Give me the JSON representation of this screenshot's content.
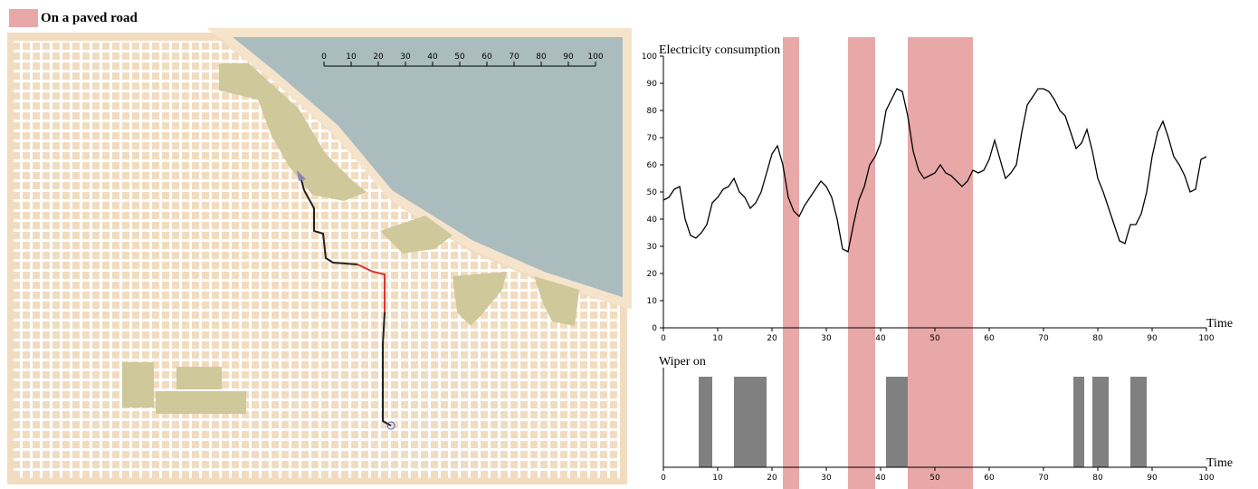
{
  "legend": {
    "label": "On a paved road",
    "color": "#e8a8a8",
    "intervals": [
      [
        22,
        25
      ],
      [
        34,
        39
      ],
      [
        45,
        57
      ]
    ]
  },
  "map": {
    "scale_ticks": [
      0,
      10,
      20,
      30,
      40,
      50,
      60,
      70,
      80,
      90,
      100
    ]
  },
  "chart_data": [
    {
      "type": "line",
      "title": "Electricity consumption",
      "x_label": "Time",
      "color": "#000000",
      "x": [
        0,
        1,
        2,
        3,
        4,
        5,
        6,
        7,
        8,
        9,
        10,
        11,
        12,
        13,
        14,
        15,
        16,
        17,
        18,
        19,
        20,
        21,
        22,
        23,
        24,
        25,
        26,
        27,
        28,
        29,
        30,
        31,
        32,
        33,
        34,
        35,
        36,
        37,
        38,
        39,
        40,
        41,
        42,
        43,
        44,
        45,
        46,
        47,
        48,
        49,
        50,
        51,
        52,
        53,
        54,
        55,
        56,
        57,
        58,
        59,
        60,
        61,
        62,
        63,
        64,
        65,
        66,
        67,
        68,
        69,
        70,
        71,
        72,
        73,
        74,
        75,
        76,
        77,
        78,
        79,
        80,
        81,
        82,
        83,
        84,
        85,
        86,
        87,
        88,
        89,
        90,
        91,
        92,
        93,
        94,
        95,
        96,
        97,
        98,
        99,
        100
      ],
      "values": [
        47,
        48,
        51,
        52,
        40,
        34,
        33,
        35,
        38,
        46,
        48,
        51,
        52,
        55,
        50,
        48,
        44,
        46,
        50,
        57,
        64,
        67,
        60,
        48,
        43,
        41,
        45,
        48,
        51,
        54,
        52,
        48,
        40,
        29,
        28,
        38,
        47,
        52,
        60,
        63,
        68,
        80,
        84,
        88,
        87,
        78,
        65,
        58,
        55,
        56,
        57,
        60,
        57,
        56,
        54,
        52,
        54,
        58,
        57,
        58,
        62,
        69,
        62,
        55,
        57,
        60,
        72,
        82,
        85,
        88,
        88,
        87,
        84,
        80,
        78,
        72,
        66,
        68,
        73,
        65,
        55,
        50,
        44,
        38,
        32,
        31,
        38,
        38,
        42,
        50,
        63,
        72,
        76,
        70,
        63,
        60,
        56,
        50,
        51,
        62,
        63
      ],
      "xlim": [
        0,
        100
      ],
      "xticks": [
        0,
        10,
        20,
        30,
        40,
        50,
        60,
        70,
        80,
        90,
        100
      ],
      "ylim": [
        0,
        100
      ],
      "yticks": [
        0,
        10,
        20,
        30,
        40,
        50,
        60,
        70,
        80,
        90,
        100
      ]
    },
    {
      "type": "span",
      "title": "Wiper on",
      "x_label": "Time",
      "color": "#808080",
      "intervals": [
        [
          6.5,
          9
        ],
        [
          13,
          19
        ],
        [
          41,
          45
        ],
        [
          75.5,
          77.5
        ],
        [
          79,
          82
        ],
        [
          86,
          89
        ]
      ],
      "values": [
        1,
        1,
        1,
        1,
        1,
        1
      ],
      "xlim": [
        0,
        100
      ],
      "xticks": [
        0,
        10,
        20,
        30,
        40,
        50,
        60,
        70,
        80,
        90,
        100
      ],
      "ylim": [
        0,
        1.1
      ]
    }
  ]
}
